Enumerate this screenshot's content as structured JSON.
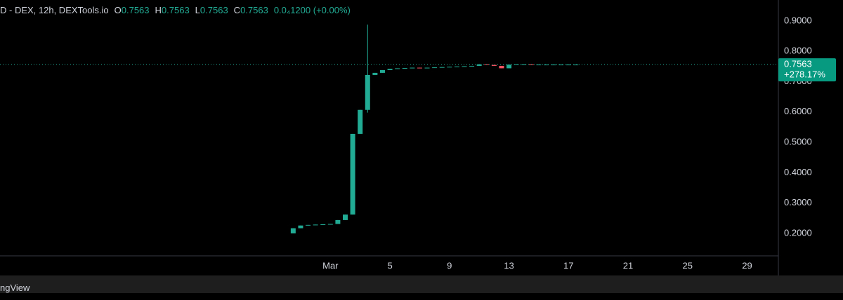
{
  "chart_data": {
    "type": "candlestick",
    "symbol": "D - DEX, 12h, DEXTools.io",
    "ohlc": [
      {
        "label": "O",
        "value": 0.7563
      },
      {
        "label": "H",
        "value": 0.7563
      },
      {
        "label": "L",
        "value": 0.7563
      },
      {
        "label": "C",
        "value": 0.7563
      }
    ],
    "change_text": "0.0₄1200 (+0.00%)",
    "up_color": "#22ab94",
    "down_color": "#f7525f",
    "x": [
      -1.5,
      -1,
      -0.5,
      0,
      0.5,
      1,
      1.5,
      2,
      2.5,
      3,
      3.5,
      4,
      4.5,
      5,
      5.5,
      6,
      6.5,
      7,
      7.5,
      8,
      8.5,
      9,
      9.5,
      10,
      10.5,
      11,
      11.5,
      12,
      12.5,
      13,
      13.5,
      14,
      14.5,
      15,
      15.5,
      16,
      16.5,
      17,
      17.5
    ],
    "open": [
      0.2,
      0.217,
      0.226,
      0.228,
      0.229,
      0.23,
      0.231,
      0.244,
      0.262,
      0.528,
      0.607,
      0.722,
      0.729,
      0.738,
      0.742,
      0.744,
      0.745,
      0.746,
      0.745,
      0.746,
      0.747,
      0.748,
      0.749,
      0.75,
      0.751,
      0.752,
      0.757,
      0.755,
      0.752,
      0.744,
      0.756,
      0.756,
      0.7565,
      0.7563,
      0.7563,
      0.7563,
      0.7563,
      0.7563,
      0.7563
    ],
    "high": [
      0.217,
      0.226,
      0.228,
      0.229,
      0.23,
      0.231,
      0.244,
      0.262,
      0.528,
      0.607,
      0.888,
      0.729,
      0.738,
      0.742,
      0.744,
      0.745,
      0.746,
      0.746,
      0.746,
      0.747,
      0.748,
      0.749,
      0.75,
      0.751,
      0.752,
      0.758,
      0.757,
      0.755,
      0.752,
      0.756,
      0.757,
      0.7565,
      0.7565,
      0.7563,
      0.7563,
      0.7563,
      0.7563,
      0.7563,
      0.7563
    ],
    "low": [
      0.2,
      0.217,
      0.226,
      0.228,
      0.229,
      0.23,
      0.231,
      0.244,
      0.262,
      0.528,
      0.598,
      0.722,
      0.729,
      0.738,
      0.742,
      0.744,
      0.745,
      0.745,
      0.745,
      0.746,
      0.747,
      0.748,
      0.749,
      0.75,
      0.751,
      0.752,
      0.755,
      0.752,
      0.744,
      0.744,
      0.756,
      0.756,
      0.7563,
      0.7563,
      0.7563,
      0.7563,
      0.7563,
      0.7563,
      0.7563
    ],
    "close": [
      0.217,
      0.226,
      0.228,
      0.229,
      0.23,
      0.231,
      0.244,
      0.262,
      0.528,
      0.607,
      0.722,
      0.729,
      0.738,
      0.742,
      0.744,
      0.745,
      0.746,
      0.745,
      0.746,
      0.747,
      0.748,
      0.749,
      0.75,
      0.751,
      0.752,
      0.757,
      0.755,
      0.752,
      0.744,
      0.756,
      0.757,
      0.7565,
      0.7563,
      0.7563,
      0.7563,
      0.7563,
      0.7563,
      0.7563,
      0.7563
    ],
    "xlim": [
      -21.2,
      31.1
    ],
    "xticks": [
      {
        "value": 1,
        "label": "Mar"
      },
      5,
      9,
      13,
      17,
      21,
      25,
      29
    ],
    "ylim": [
      0.126,
      0.969
    ],
    "yticks": [
      {
        "value": 0.9,
        "label": "0.9000"
      },
      {
        "value": 0.8,
        "label": "0.8000"
      },
      {
        "value": 0.7,
        "label": "0.7000"
      },
      {
        "value": 0.6,
        "label": "0.6000"
      },
      {
        "value": 0.5,
        "label": "0.5000"
      },
      {
        "value": 0.4,
        "label": "0.4000"
      },
      {
        "value": 0.3,
        "label": "0.3000"
      },
      {
        "value": 0.2,
        "label": "0.2000"
      }
    ],
    "last_price": 0.7563,
    "change_label": "+278.17%"
  },
  "footer": "ngView"
}
